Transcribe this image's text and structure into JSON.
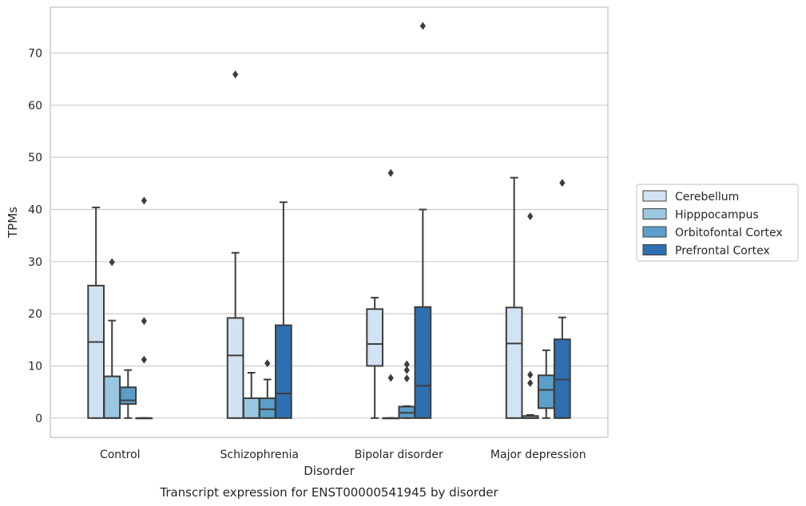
{
  "chart_data": {
    "type": "box",
    "caption": "Transcript expression for ENST00000541945 by disorder",
    "xlabel": "Disorder",
    "ylabel": "TPMs",
    "ylim": [
      -3.7,
      78.8
    ],
    "yticks": [
      0,
      10,
      20,
      30,
      40,
      50,
      60,
      70
    ],
    "grid": true,
    "legend_position": "right",
    "categories": [
      "Control",
      "Schizophrenia",
      "Bipolar disorder",
      "Major depression"
    ],
    "series": [
      {
        "name": "Cerebellum",
        "color": "#d1e2f2",
        "boxes": [
          {
            "whislo": 0,
            "q1": 0,
            "med": 14.6,
            "q3": 25.4,
            "whishi": 40.4,
            "fliers": []
          },
          {
            "whislo": 0,
            "q1": 0,
            "med": 12.0,
            "q3": 19.2,
            "whishi": 31.7,
            "fliers": [
              65.9
            ]
          },
          {
            "whislo": 0,
            "q1": 10.0,
            "med": 14.2,
            "q3": 20.9,
            "whishi": 23.1,
            "fliers": []
          },
          {
            "whislo": 0,
            "q1": 0,
            "med": 14.3,
            "q3": 21.2,
            "whishi": 46.1,
            "fliers": []
          }
        ]
      },
      {
        "name": "Hipppocampus",
        "color": "#9ac7e0",
        "boxes": [
          {
            "whislo": 0,
            "q1": 0,
            "med": 0,
            "q3": 8.0,
            "whishi": 18.7,
            "fliers": [
              29.9
            ]
          },
          {
            "whislo": 0,
            "q1": 0,
            "med": 0,
            "q3": 3.8,
            "whishi": 8.7,
            "fliers": []
          },
          {
            "whislo": 0,
            "q1": 0,
            "med": 0,
            "q3": 0,
            "whishi": 0,
            "fliers": [
              7.7,
              47.0
            ]
          },
          {
            "whislo": 0,
            "q1": 0,
            "med": 0,
            "q3": 0.4,
            "whishi": 0.6,
            "fliers": [
              6.7,
              8.3,
              38.7
            ]
          }
        ]
      },
      {
        "name": "Orbitofontal Cortex",
        "color": "#5b9ec9",
        "boxes": [
          {
            "whislo": 0,
            "q1": 2.7,
            "med": 3.4,
            "q3": 5.9,
            "whishi": 9.2,
            "fliers": []
          },
          {
            "whislo": 0,
            "q1": 0,
            "med": 1.7,
            "q3": 3.8,
            "whishi": 7.4,
            "fliers": [
              10.5
            ]
          },
          {
            "whislo": 0,
            "q1": 0,
            "med": 1.0,
            "q3": 2.2,
            "whishi": 2.3,
            "fliers": [
              7.6,
              9.2,
              10.3
            ]
          },
          {
            "whislo": 0,
            "q1": 1.9,
            "med": 5.4,
            "q3": 8.2,
            "whishi": 13.0,
            "fliers": []
          }
        ]
      },
      {
        "name": "Prefrontal Cortex",
        "color": "#2d6fb0",
        "boxes": [
          {
            "whislo": 0,
            "q1": 0,
            "med": 0,
            "q3": 0,
            "whishi": 0,
            "fliers": [
              11.2,
              18.6,
              41.7
            ]
          },
          {
            "whislo": 0,
            "q1": 0,
            "med": 4.7,
            "q3": 17.8,
            "whishi": 41.4,
            "fliers": []
          },
          {
            "whislo": 0,
            "q1": 0,
            "med": 6.2,
            "q3": 21.3,
            "whishi": 40.0,
            "fliers": [
              75.2
            ]
          },
          {
            "whislo": 0,
            "q1": 0,
            "med": 7.4,
            "q3": 15.1,
            "whishi": 19.3,
            "fliers": [
              45.1
            ]
          }
        ]
      }
    ]
  }
}
